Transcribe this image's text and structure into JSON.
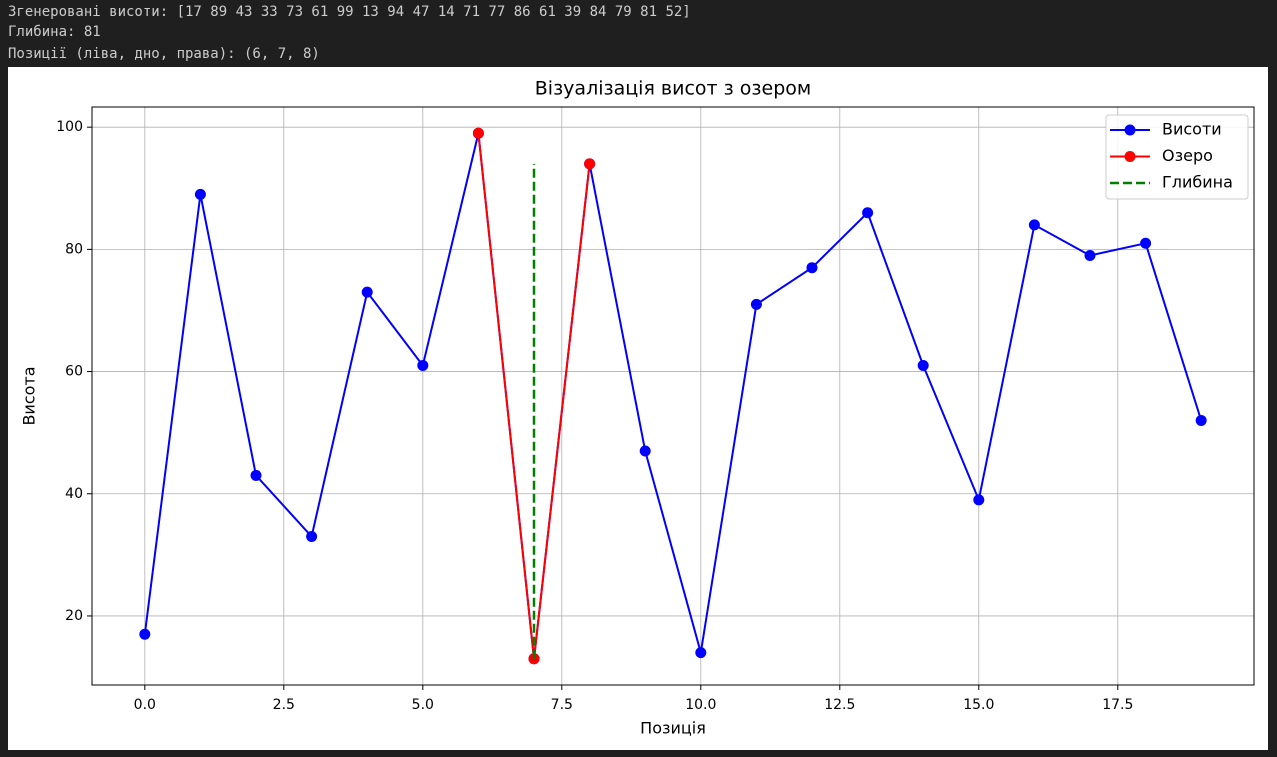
{
  "output_lines": [
    "Згенеровані висоти: [17 89 43 33 73 61 99 13 94 47 14 71 77 86 61 39 84 79 81 52]",
    "Глибина: 81",
    "Позиції (ліва, дно, права): (6, 7, 8)"
  ],
  "chart_data": {
    "type": "line",
    "title": "Візуалізація висот з озером",
    "x_label": "Позиція",
    "y_label": "Висота",
    "series": [
      {
        "name": "Висоти",
        "color": "#0000ff",
        "marker": "o",
        "linestyle": "solid",
        "x": [
          0,
          1,
          2,
          3,
          4,
          5,
          6,
          7,
          8,
          9,
          10,
          11,
          12,
          13,
          14,
          15,
          16,
          17,
          18,
          19
        ],
        "values": [
          17,
          89,
          43,
          33,
          73,
          61,
          99,
          13,
          94,
          47,
          14,
          71,
          77,
          86,
          61,
          39,
          84,
          79,
          81,
          52
        ]
      },
      {
        "name": "Озеро",
        "color": "#ff0000",
        "marker": "o",
        "linestyle": "solid",
        "x": [
          6,
          7,
          8
        ],
        "values": [
          99,
          13,
          94
        ]
      },
      {
        "name": "Глибина",
        "color": "#008000",
        "marker": null,
        "linestyle": "dashed",
        "x": [
          7,
          7
        ],
        "values": [
          13,
          94
        ]
      }
    ],
    "xlim": [
      -0.95,
      19.95
    ],
    "ylim": [
      8.7,
      103.3
    ],
    "xticks": [
      {
        "value": 0,
        "label": "0.0"
      },
      {
        "value": 2.5,
        "label": "2.5"
      },
      {
        "value": 5,
        "label": "5.0"
      },
      {
        "value": 7.5,
        "label": "7.5"
      },
      {
        "value": 10,
        "label": "10.0"
      },
      {
        "value": 12.5,
        "label": "12.5"
      },
      {
        "value": 15,
        "label": "15.0"
      },
      {
        "value": 17.5,
        "label": "17.5"
      }
    ],
    "yticks": [
      20,
      40,
      60,
      80,
      100
    ],
    "grid": true,
    "legend": "upper right"
  }
}
